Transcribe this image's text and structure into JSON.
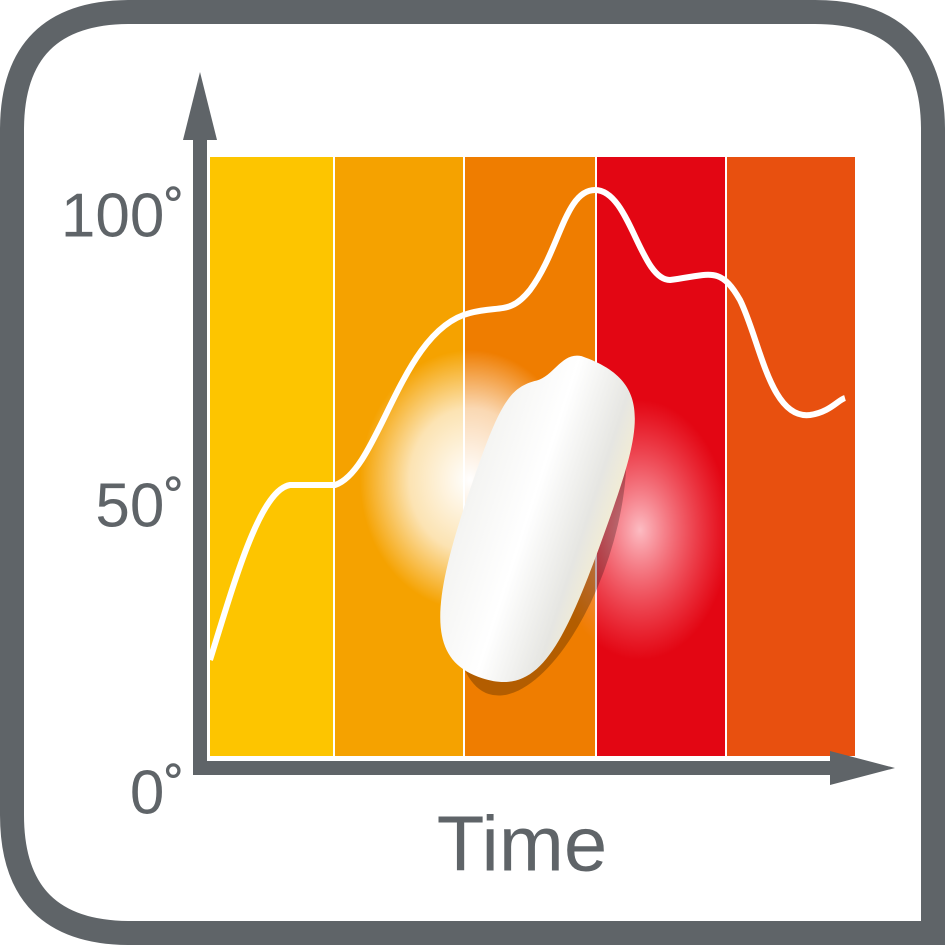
{
  "y_labels": [
    "100˚",
    "50˚",
    "0˚"
  ],
  "x_label": "Time"
}
